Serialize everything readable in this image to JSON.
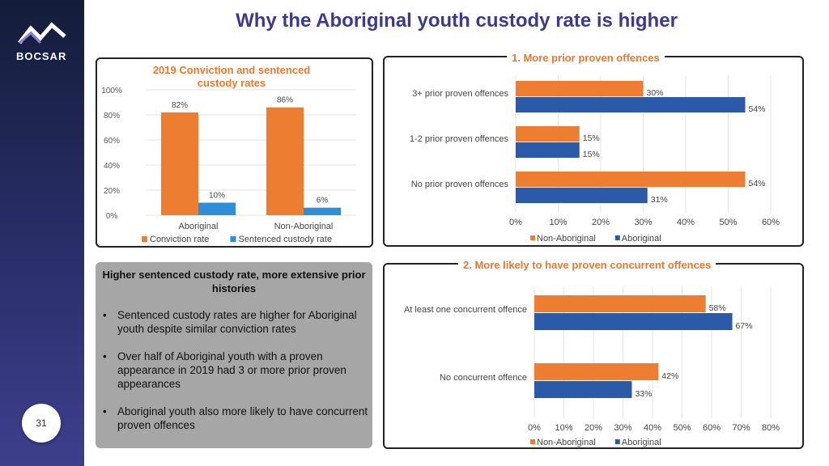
{
  "logo": {
    "text": "BOCSAR",
    "icon": "bocsar-chevron-logo"
  },
  "page_number": "31",
  "title": "Why the Aboriginal youth custody rate is higher",
  "colors": {
    "orange": "#ed7d31",
    "blue_light": "#2e8fd8",
    "blue_dark": "#2b5aa8",
    "heading": "#3d3a8c",
    "accent": "#e8792b"
  },
  "summary": {
    "heading": "Higher sentenced custody rate, more extensive prior histories",
    "bullets": [
      "Sentenced custody rates are higher for Aboriginal youth despite similar conviction rates",
      "Over half of Aboriginal youth with a proven appearance in 2019 had 3 or more prior proven appearances",
      "Aboriginal youth also more likely to have concurrent proven offences"
    ]
  },
  "chart_data": [
    {
      "type": "bar",
      "title": "2019 Conviction and sentenced custody  rates",
      "categories": [
        "Aboriginal",
        "Non-Aboriginal"
      ],
      "series": [
        {
          "name": "Conviction rate",
          "values": [
            82,
            86
          ],
          "labels": [
            "82%",
            "86%"
          ],
          "color": "#ed7d31"
        },
        {
          "name": "Sentenced custody rate",
          "values": [
            10,
            6
          ],
          "labels": [
            "10%",
            "6%"
          ],
          "color": "#2e8fd8"
        }
      ],
      "ylim": [
        0,
        100
      ],
      "yticks": [
        "0%",
        "20%",
        "40%",
        "60%",
        "80%",
        "100%"
      ],
      "legend": "bottom",
      "grid": true
    },
    {
      "type": "bar",
      "orientation": "horizontal",
      "title": "1. More prior proven offences",
      "categories": [
        "3+ prior proven offences",
        "1-2 prior proven offences",
        "No prior proven offences"
      ],
      "series": [
        {
          "name": "Non-Aboriginal",
          "values": [
            30,
            15,
            54
          ],
          "labels": [
            "30%",
            "15%",
            "54%"
          ],
          "color": "#ed7d31"
        },
        {
          "name": "Aboriginal",
          "values": [
            54,
            15,
            31
          ],
          "labels": [
            "54%",
            "15%",
            "31%"
          ],
          "color": "#2b5aa8"
        }
      ],
      "xlim": [
        0,
        60
      ],
      "xticks": [
        "0%",
        "10%",
        "20%",
        "30%",
        "40%",
        "50%",
        "60%"
      ],
      "legend": "bottom",
      "grid": true
    },
    {
      "type": "bar",
      "orientation": "horizontal",
      "title": "2. More likely to have proven concurrent offences",
      "categories": [
        "At least one concurrent offence",
        "No concurrent offence"
      ],
      "series": [
        {
          "name": "Non-Aboriginal",
          "values": [
            58,
            42
          ],
          "labels": [
            "58%",
            "42%"
          ],
          "color": "#ed7d31"
        },
        {
          "name": "Aboriginal",
          "values": [
            67,
            33
          ],
          "labels": [
            "67%",
            "33%"
          ],
          "color": "#2b5aa8"
        }
      ],
      "xlim": [
        0,
        80
      ],
      "xticks": [
        "0%",
        "10%",
        "20%",
        "30%",
        "40%",
        "50%",
        "60%",
        "70%",
        "80%"
      ],
      "legend": "bottom",
      "grid": true
    }
  ]
}
